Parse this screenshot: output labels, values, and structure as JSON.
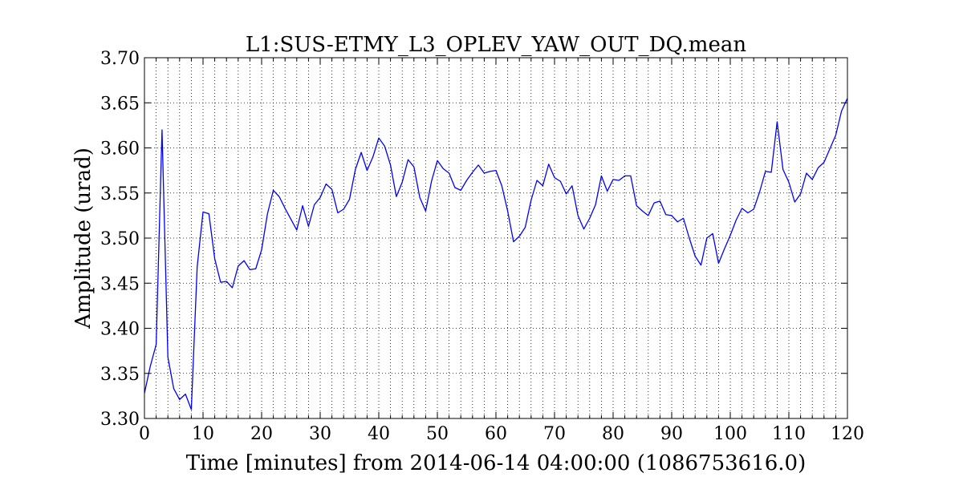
{
  "chart_data": {
    "type": "line",
    "title": "L1:SUS-ETMY_L3_OPLEV_YAW_OUT_DQ.mean",
    "xlabel": "Time [minutes] from 2014-06-14 04:00:00 (1086753616.0)",
    "ylabel": "Amplitude (urad)",
    "xlim": [
      0,
      120
    ],
    "ylim": [
      3.3,
      3.7
    ],
    "grid": true,
    "x_ticks": [
      0,
      10,
      20,
      30,
      40,
      50,
      60,
      70,
      80,
      90,
      100,
      110,
      120
    ],
    "x_tick_labels": [
      "0",
      "10",
      "20",
      "30",
      "40",
      "50",
      "60",
      "70",
      "80",
      "90",
      "100",
      "110",
      "120"
    ],
    "y_ticks": [
      3.3,
      3.35,
      3.4,
      3.45,
      3.5,
      3.55,
      3.6,
      3.65,
      3.7
    ],
    "y_tick_labels": [
      "3.30",
      "3.35",
      "3.40",
      "3.45",
      "3.50",
      "3.55",
      "3.60",
      "3.65",
      "3.70"
    ],
    "series": [
      {
        "name": "L1:SUS-ETMY_L3_OPLEV_YAW_OUT_DQ.mean",
        "color": "#0000ff",
        "x": [
          0,
          1,
          2,
          3,
          4,
          5,
          6,
          7,
          8,
          9,
          10,
          11,
          12,
          13,
          14,
          15,
          16,
          17,
          18,
          19,
          20,
          21,
          22,
          23,
          24,
          25,
          26,
          27,
          28,
          29,
          30,
          31,
          32,
          33,
          34,
          35,
          36,
          37,
          38,
          39,
          40,
          41,
          42,
          43,
          44,
          45,
          46,
          47,
          48,
          49,
          50,
          51,
          52,
          53,
          54,
          55,
          56,
          57,
          58,
          59,
          60,
          61,
          62,
          63,
          64,
          65,
          66,
          67,
          68,
          69,
          70,
          71,
          72,
          73,
          74,
          75,
          76,
          77,
          78,
          79,
          80,
          81,
          82,
          83,
          84,
          85,
          86,
          87,
          88,
          89,
          90,
          91,
          92,
          93,
          94,
          95,
          96,
          97,
          98,
          99,
          100,
          101,
          102,
          103,
          104,
          105,
          106,
          107,
          108,
          109,
          110,
          111,
          112,
          113,
          114,
          115,
          116,
          117,
          118,
          119,
          120
        ],
        "values": [
          3.328,
          3.358,
          3.382,
          3.62,
          3.368,
          3.333,
          3.321,
          3.327,
          3.31,
          3.468,
          3.529,
          3.527,
          3.477,
          3.451,
          3.452,
          3.445,
          3.469,
          3.475,
          3.465,
          3.466,
          3.487,
          3.527,
          3.553,
          3.546,
          3.533,
          3.521,
          3.509,
          3.536,
          3.513,
          3.537,
          3.545,
          3.56,
          3.554,
          3.528,
          3.532,
          3.543,
          3.576,
          3.595,
          3.575,
          3.59,
          3.611,
          3.602,
          3.581,
          3.546,
          3.562,
          3.587,
          3.579,
          3.545,
          3.53,
          3.563,
          3.586,
          3.577,
          3.572,
          3.556,
          3.553,
          3.564,
          3.573,
          3.581,
          3.572,
          3.574,
          3.575,
          3.558,
          3.53,
          3.496,
          3.502,
          3.512,
          3.542,
          3.564,
          3.558,
          3.582,
          3.567,
          3.563,
          3.549,
          3.558,
          3.525,
          3.51,
          3.522,
          3.537,
          3.569,
          3.552,
          3.565,
          3.564,
          3.569,
          3.569,
          3.536,
          3.53,
          3.525,
          3.539,
          3.541,
          3.526,
          3.525,
          3.518,
          3.522,
          3.5,
          3.48,
          3.47,
          3.5,
          3.505,
          3.472,
          3.488,
          3.503,
          3.52,
          3.533,
          3.528,
          3.532,
          3.551,
          3.574,
          3.573,
          3.629,
          3.576,
          3.562,
          3.54,
          3.549,
          3.572,
          3.565,
          3.578,
          3.584,
          3.599,
          3.614,
          3.641,
          3.655
        ]
      }
    ]
  }
}
